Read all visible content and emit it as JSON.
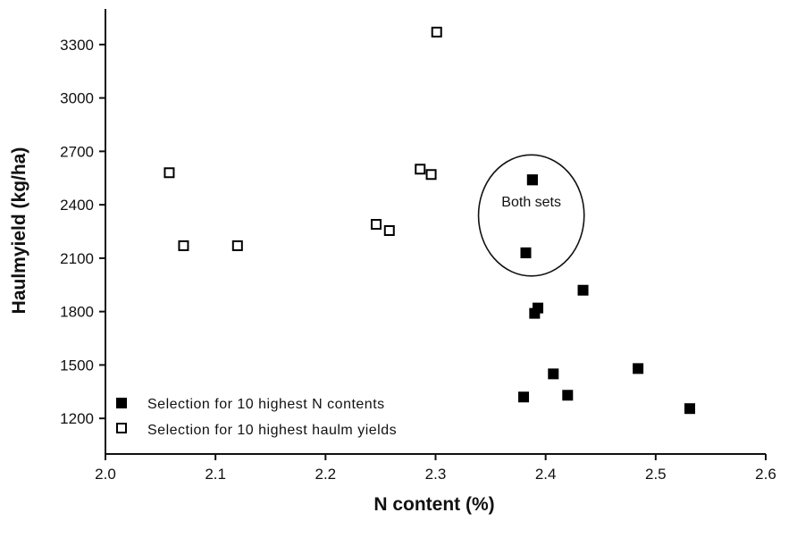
{
  "chart_data": {
    "type": "scatter",
    "title": "",
    "xlabel": "N content (%)",
    "ylabel": "Haulmyield (kg/ha)",
    "xlim": [
      2.0,
      2.6
    ],
    "ylim": [
      1000,
      3500
    ],
    "x_ticks": [
      "2.0",
      "2.1",
      "2.2",
      "2.3",
      "2.4",
      "2.5",
      "2.6"
    ],
    "y_ticks": [
      "1200",
      "1500",
      "1800",
      "2100",
      "2400",
      "2700",
      "3000",
      "3300"
    ],
    "grid": false,
    "legend_position": "bottom-left",
    "series": [
      {
        "name": "Selection for 10 highest N contents",
        "marker": "filled-square",
        "color": "#000000",
        "points": [
          {
            "x": 2.388,
            "y": 2540
          },
          {
            "x": 2.382,
            "y": 2130
          },
          {
            "x": 2.434,
            "y": 1920
          },
          {
            "x": 2.393,
            "y": 1820
          },
          {
            "x": 2.39,
            "y": 1790
          },
          {
            "x": 2.484,
            "y": 1480
          },
          {
            "x": 2.407,
            "y": 1450
          },
          {
            "x": 2.42,
            "y": 1330
          },
          {
            "x": 2.38,
            "y": 1320
          },
          {
            "x": 2.531,
            "y": 1255
          }
        ]
      },
      {
        "name": "Selection for 10 highest haulm yields",
        "marker": "open-square",
        "color": "#000000",
        "points": [
          {
            "x": 2.301,
            "y": 3370
          },
          {
            "x": 2.058,
            "y": 2580
          },
          {
            "x": 2.286,
            "y": 2600
          },
          {
            "x": 2.296,
            "y": 2570
          },
          {
            "x": 2.246,
            "y": 2290
          },
          {
            "x": 2.258,
            "y": 2255
          },
          {
            "x": 2.071,
            "y": 2170
          },
          {
            "x": 2.12,
            "y": 2170
          },
          {
            "x": 2.388,
            "y": 2540
          },
          {
            "x": 2.382,
            "y": 2130
          }
        ]
      }
    ],
    "annotations": [
      {
        "text": "Both sets",
        "shape": "ellipse",
        "cx": 2.387,
        "cy": 2340,
        "rx": 0.048,
        "ry": 340
      }
    ]
  }
}
